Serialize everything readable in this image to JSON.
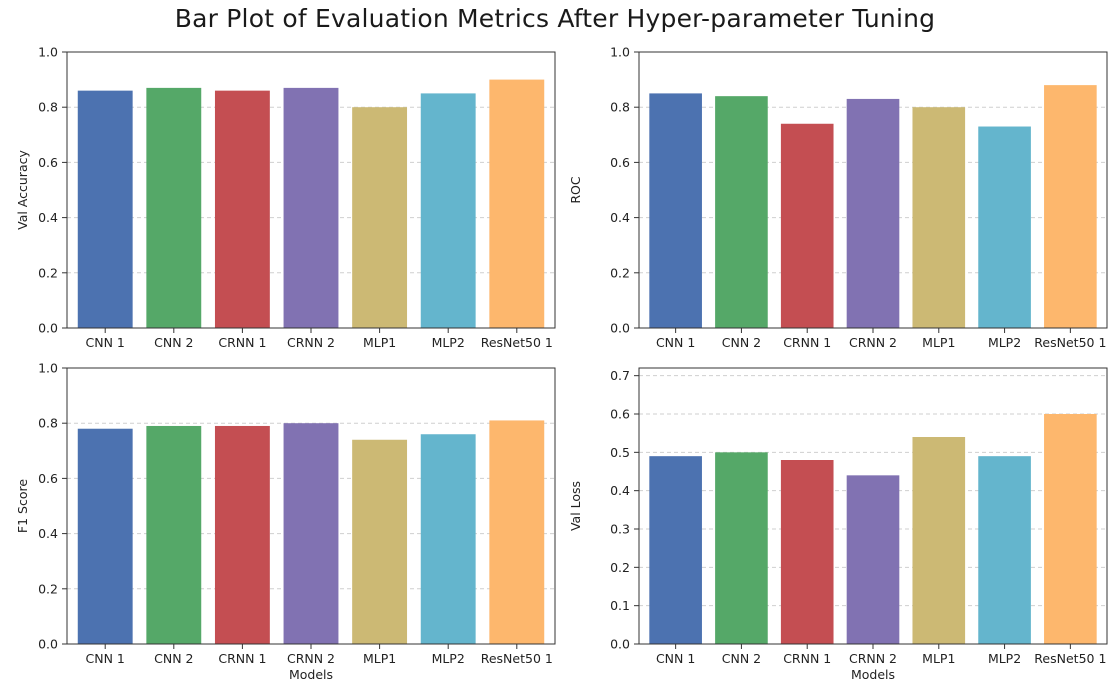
{
  "figure": {
    "title": "Bar Plot of Evaluation Metrics After Hyper-parameter Tuning"
  },
  "colors": [
    "#4c72b0",
    "#55a868",
    "#c44e52",
    "#8172b2",
    "#ccb974",
    "#64b5cd",
    "#fdb76d"
  ],
  "chart_data": [
    {
      "type": "bar",
      "categories": [
        "CNN 1",
        "CNN 2",
        "CRNN 1",
        "CRNN 2",
        "MLP1",
        "MLP2",
        "ResNet50 1"
      ],
      "values": [
        0.86,
        0.87,
        0.86,
        0.87,
        0.8,
        0.85,
        0.9
      ],
      "xlabel": "",
      "ylabel": "Val Accuracy",
      "ylim": [
        0,
        1.0
      ],
      "yticks": [
        "0.0",
        "0.2",
        "0.4",
        "0.6",
        "0.8",
        "1.0"
      ],
      "grid": "y-dashed"
    },
    {
      "type": "bar",
      "categories": [
        "CNN 1",
        "CNN 2",
        "CRNN 1",
        "CRNN 2",
        "MLP1",
        "MLP2",
        "ResNet50 1"
      ],
      "values": [
        0.85,
        0.84,
        0.74,
        0.83,
        0.8,
        0.73,
        0.88
      ],
      "xlabel": "",
      "ylabel": "ROC",
      "ylim": [
        0,
        1.0
      ],
      "yticks": [
        "0.0",
        "0.2",
        "0.4",
        "0.6",
        "0.8",
        "1.0"
      ],
      "grid": "y-dashed"
    },
    {
      "type": "bar",
      "categories": [
        "CNN 1",
        "CNN 2",
        "CRNN 1",
        "CRNN 2",
        "MLP1",
        "MLP2",
        "ResNet50 1"
      ],
      "values": [
        0.78,
        0.79,
        0.79,
        0.8,
        0.74,
        0.76,
        0.81
      ],
      "xlabel": "Models",
      "ylabel": "F1 Score",
      "ylim": [
        0,
        1.0
      ],
      "yticks": [
        "0.0",
        "0.2",
        "0.4",
        "0.6",
        "0.8",
        "1.0"
      ],
      "grid": "y-dashed"
    },
    {
      "type": "bar",
      "categories": [
        "CNN 1",
        "CNN 2",
        "CRNN 1",
        "CRNN 2",
        "MLP1",
        "MLP2",
        "ResNet50 1"
      ],
      "values": [
        0.49,
        0.5,
        0.48,
        0.44,
        0.54,
        0.49,
        0.6
      ],
      "xlabel": "Models",
      "ylabel": "Val Loss",
      "ylim": [
        0,
        0.72
      ],
      "yticks": [
        "0.0",
        "0.1",
        "0.2",
        "0.3",
        "0.4",
        "0.5",
        "0.6",
        "0.7"
      ],
      "grid": "y-dashed"
    }
  ]
}
